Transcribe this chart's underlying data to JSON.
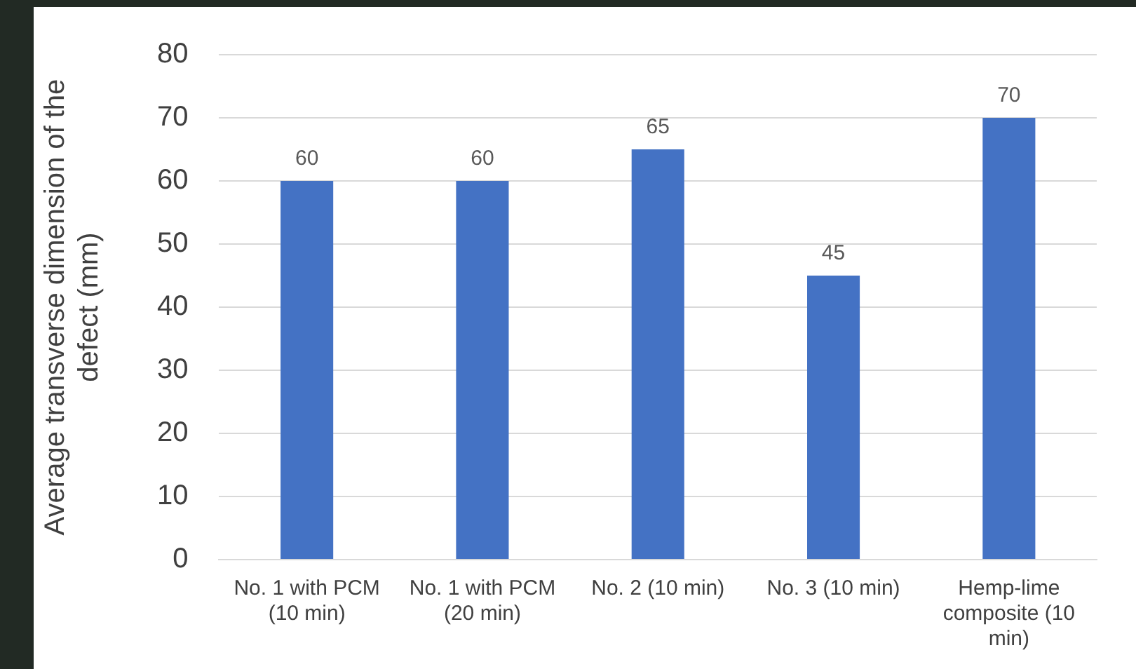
{
  "chart_data": {
    "type": "bar",
    "ylabel": "Average transverse dimension of the defect (mm)",
    "categories": [
      "No. 1 with PCM (10 min)",
      "No. 1 with PCM (20 min)",
      "No. 2 (10 min)",
      "No. 3 (10 min)",
      "Hemp-lime composite (10 min)"
    ],
    "values": [
      60,
      60,
      65,
      45,
      70
    ],
    "color": "#4472c4",
    "ylim": [
      0,
      80
    ],
    "yticks": [
      0,
      10,
      20,
      30,
      40,
      50,
      60,
      70,
      80
    ],
    "grid": "y",
    "data_labels": true
  }
}
